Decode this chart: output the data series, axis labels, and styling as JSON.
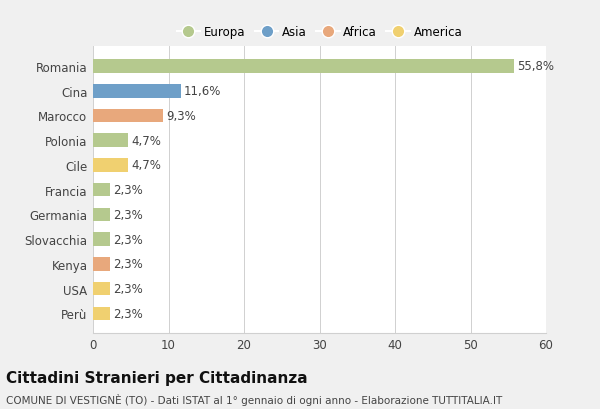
{
  "categories": [
    "Romania",
    "Cina",
    "Marocco",
    "Polonia",
    "Cile",
    "Francia",
    "Germania",
    "Slovacchia",
    "Kenya",
    "USA",
    "Perù"
  ],
  "values": [
    55.8,
    11.6,
    9.3,
    4.7,
    4.7,
    2.3,
    2.3,
    2.3,
    2.3,
    2.3,
    2.3
  ],
  "labels": [
    "55,8%",
    "11,6%",
    "9,3%",
    "4,7%",
    "4,7%",
    "2,3%",
    "2,3%",
    "2,3%",
    "2,3%",
    "2,3%",
    "2,3%"
  ],
  "colors": [
    "#b5c98e",
    "#6e9fc8",
    "#e8a87c",
    "#b5c98e",
    "#f0d070",
    "#b5c98e",
    "#b5c98e",
    "#b5c98e",
    "#e8a87c",
    "#f0d070",
    "#f0d070"
  ],
  "legend_labels": [
    "Europa",
    "Asia",
    "Africa",
    "America"
  ],
  "legend_colors": [
    "#b5c98e",
    "#6e9fc8",
    "#e8a87c",
    "#f0d070"
  ],
  "title": "Cittadini Stranieri per Cittadinanza",
  "subtitle": "COMUNE DI VESTIGNÈ (TO) - Dati ISTAT al 1° gennaio di ogni anno - Elaborazione TUTTITALIA.IT",
  "xlim": [
    0,
    60
  ],
  "xticks": [
    0,
    10,
    20,
    30,
    40,
    50,
    60
  ],
  "background_color": "#f0f0f0",
  "plot_bg_color": "#ffffff",
  "grid_color": "#d0d0d0",
  "title_fontsize": 11,
  "subtitle_fontsize": 7.5,
  "label_fontsize": 8.5,
  "tick_fontsize": 8.5,
  "bar_height": 0.55
}
